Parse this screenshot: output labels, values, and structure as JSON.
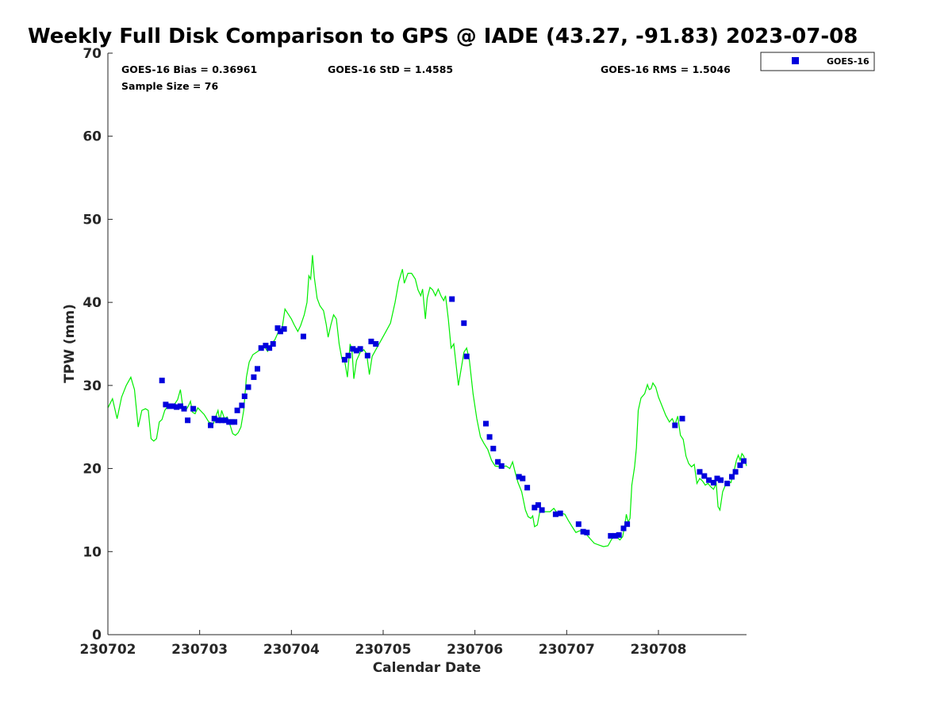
{
  "chart_data": {
    "type": "scatter",
    "title": "Weekly Full Disk Comparison to GPS @ IADE (43.27, -91.83) 2023-07-08",
    "xlabel": "Calendar Date",
    "ylabel": "TPW (mm)",
    "xlim": [
      0,
      6.96
    ],
    "ylim": [
      0,
      70
    ],
    "x_ticks": [
      0,
      1,
      2,
      3,
      4,
      5,
      6
    ],
    "x_tick_labels": [
      "230702",
      "230703",
      "230704",
      "230705",
      "230706",
      "230707",
      "230708"
    ],
    "y_ticks": [
      0,
      10,
      20,
      30,
      40,
      50,
      60,
      70
    ],
    "y_tick_labels": [
      "0",
      "10",
      "20",
      "30",
      "40",
      "50",
      "60",
      "70"
    ],
    "legend_position": "top-right outside",
    "stats": {
      "bias": "GOES-16 Bias = 0.36961",
      "std": "GOES-16 StD = 1.4585",
      "rms": "GOES-16 RMS = 1.5046",
      "sample": "Sample Size = 76"
    },
    "series": [
      {
        "name": "GPS",
        "kind": "line",
        "color": "#00ee00",
        "points": [
          [
            0.0,
            27.3
          ],
          [
            0.05,
            28.4
          ],
          [
            0.1,
            26.0
          ],
          [
            0.15,
            28.6
          ],
          [
            0.2,
            30.0
          ],
          [
            0.25,
            31.0
          ],
          [
            0.29,
            29.5
          ],
          [
            0.33,
            25.0
          ],
          [
            0.37,
            27.0
          ],
          [
            0.41,
            27.2
          ],
          [
            0.44,
            27.0
          ],
          [
            0.47,
            23.6
          ],
          [
            0.5,
            23.3
          ],
          [
            0.53,
            23.6
          ],
          [
            0.56,
            25.6
          ],
          [
            0.59,
            25.9
          ],
          [
            0.62,
            27.0
          ],
          [
            0.66,
            27.6
          ],
          [
            0.7,
            27.3
          ],
          [
            0.73,
            27.8
          ],
          [
            0.76,
            28.3
          ],
          [
            0.79,
            29.5
          ],
          [
            0.82,
            27.2
          ],
          [
            0.85,
            27.0
          ],
          [
            0.88,
            27.6
          ],
          [
            0.9,
            28.1
          ],
          [
            0.92,
            26.8
          ],
          [
            0.95,
            26.6
          ],
          [
            0.98,
            27.3
          ],
          [
            1.05,
            26.5
          ],
          [
            1.1,
            25.6
          ],
          [
            1.15,
            25.4
          ],
          [
            1.18,
            26.4
          ],
          [
            1.2,
            27.0
          ],
          [
            1.22,
            25.7
          ],
          [
            1.24,
            27.0
          ],
          [
            1.27,
            26.0
          ],
          [
            1.3,
            26.2
          ],
          [
            1.33,
            25.3
          ],
          [
            1.36,
            24.2
          ],
          [
            1.39,
            24.0
          ],
          [
            1.42,
            24.3
          ],
          [
            1.45,
            25.0
          ],
          [
            1.48,
            27.0
          ],
          [
            1.51,
            31.0
          ],
          [
            1.54,
            32.8
          ],
          [
            1.58,
            33.7
          ],
          [
            1.62,
            34.0
          ],
          [
            1.66,
            34.3
          ],
          [
            1.7,
            34.8
          ],
          [
            1.74,
            34.1
          ],
          [
            1.78,
            35.0
          ],
          [
            1.82,
            35.5
          ],
          [
            1.86,
            36.5
          ],
          [
            1.9,
            37.0
          ],
          [
            1.93,
            39.2
          ],
          [
            1.97,
            38.5
          ],
          [
            2.0,
            38.0
          ],
          [
            2.03,
            37.3
          ],
          [
            2.07,
            36.5
          ],
          [
            2.1,
            37.2
          ],
          [
            2.14,
            38.5
          ],
          [
            2.17,
            40.0
          ],
          [
            2.19,
            43.2
          ],
          [
            2.21,
            42.8
          ],
          [
            2.23,
            45.7
          ],
          [
            2.25,
            43.0
          ],
          [
            2.28,
            40.5
          ],
          [
            2.31,
            39.6
          ],
          [
            2.35,
            39.0
          ],
          [
            2.38,
            37.3
          ],
          [
            2.4,
            35.8
          ],
          [
            2.43,
            37.3
          ],
          [
            2.46,
            38.5
          ],
          [
            2.49,
            38.0
          ],
          [
            2.52,
            35.0
          ],
          [
            2.55,
            33.2
          ],
          [
            2.58,
            33.0
          ],
          [
            2.61,
            31.0
          ],
          [
            2.64,
            35.0
          ],
          [
            2.66,
            34.3
          ],
          [
            2.68,
            30.8
          ],
          [
            2.71,
            33.0
          ],
          [
            2.75,
            34.0
          ],
          [
            2.79,
            34.3
          ],
          [
            2.82,
            33.8
          ],
          [
            2.85,
            31.3
          ],
          [
            2.88,
            33.5
          ],
          [
            2.93,
            34.5
          ],
          [
            2.98,
            35.5
          ],
          [
            3.03,
            36.5
          ],
          [
            3.08,
            37.5
          ],
          [
            3.13,
            40.0
          ],
          [
            3.17,
            42.5
          ],
          [
            3.21,
            44.0
          ],
          [
            3.23,
            42.3
          ],
          [
            3.27,
            43.5
          ],
          [
            3.31,
            43.5
          ],
          [
            3.35,
            42.8
          ],
          [
            3.38,
            41.5
          ],
          [
            3.41,
            40.8
          ],
          [
            3.43,
            41.6
          ],
          [
            3.46,
            38.0
          ],
          [
            3.48,
            40.5
          ],
          [
            3.51,
            41.8
          ],
          [
            3.54,
            41.5
          ],
          [
            3.57,
            40.8
          ],
          [
            3.6,
            41.6
          ],
          [
            3.63,
            40.8
          ],
          [
            3.66,
            40.2
          ],
          [
            3.68,
            40.8
          ],
          [
            3.71,
            38.0
          ],
          [
            3.74,
            34.5
          ],
          [
            3.77,
            35.0
          ],
          [
            3.8,
            32.0
          ],
          [
            3.82,
            30.0
          ],
          [
            3.85,
            32.0
          ],
          [
            3.88,
            34.0
          ],
          [
            3.91,
            34.5
          ],
          [
            3.94,
            33.0
          ],
          [
            3.98,
            29.0
          ],
          [
            4.02,
            26.0
          ],
          [
            4.06,
            23.8
          ],
          [
            4.1,
            23.0
          ],
          [
            4.14,
            22.3
          ],
          [
            4.18,
            21.0
          ],
          [
            4.22,
            20.3
          ],
          [
            4.28,
            20.2
          ],
          [
            4.34,
            20.3
          ],
          [
            4.38,
            20.0
          ],
          [
            4.41,
            20.8
          ],
          [
            4.44,
            19.5
          ],
          [
            4.47,
            18.3
          ],
          [
            4.51,
            17.2
          ],
          [
            4.55,
            15.0
          ],
          [
            4.58,
            14.2
          ],
          [
            4.61,
            14.0
          ],
          [
            4.63,
            14.3
          ],
          [
            4.65,
            13.0
          ],
          [
            4.68,
            13.2
          ],
          [
            4.71,
            15.0
          ],
          [
            4.76,
            14.8
          ],
          [
            4.82,
            14.8
          ],
          [
            4.86,
            15.2
          ],
          [
            4.9,
            14.6
          ],
          [
            4.94,
            14.6
          ],
          [
            4.98,
            14.5
          ],
          [
            5.02,
            13.7
          ],
          [
            5.06,
            13.0
          ],
          [
            5.1,
            12.3
          ],
          [
            5.14,
            12.5
          ],
          [
            5.18,
            12.5
          ],
          [
            5.22,
            12.0
          ],
          [
            5.26,
            11.5
          ],
          [
            5.3,
            11.0
          ],
          [
            5.35,
            10.8
          ],
          [
            5.4,
            10.6
          ],
          [
            5.45,
            10.7
          ],
          [
            5.49,
            11.5
          ],
          [
            5.53,
            12.0
          ],
          [
            5.56,
            11.6
          ],
          [
            5.58,
            11.4
          ],
          [
            5.61,
            11.8
          ],
          [
            5.63,
            13.0
          ],
          [
            5.65,
            14.5
          ],
          [
            5.67,
            13.5
          ],
          [
            5.69,
            14.0
          ],
          [
            5.71,
            18.0
          ],
          [
            5.74,
            20.2
          ],
          [
            5.76,
            22.5
          ],
          [
            5.78,
            27.0
          ],
          [
            5.81,
            28.5
          ],
          [
            5.85,
            29.0
          ],
          [
            5.88,
            30.1
          ],
          [
            5.9,
            29.5
          ],
          [
            5.92,
            29.6
          ],
          [
            5.94,
            30.3
          ],
          [
            5.97,
            29.8
          ],
          [
            6.0,
            28.6
          ],
          [
            6.04,
            27.5
          ],
          [
            6.08,
            26.4
          ],
          [
            6.12,
            25.6
          ],
          [
            6.15,
            26.0
          ],
          [
            6.18,
            25.3
          ],
          [
            6.21,
            26.3
          ],
          [
            6.24,
            24.0
          ],
          [
            6.27,
            23.5
          ],
          [
            6.3,
            21.5
          ],
          [
            6.33,
            20.6
          ],
          [
            6.36,
            20.2
          ],
          [
            6.39,
            20.5
          ],
          [
            6.42,
            18.2
          ],
          [
            6.45,
            18.8
          ],
          [
            6.48,
            18.5
          ],
          [
            6.51,
            18.0
          ],
          [
            6.54,
            18.2
          ],
          [
            6.57,
            17.8
          ],
          [
            6.6,
            17.5
          ],
          [
            6.63,
            18.2
          ],
          [
            6.65,
            15.4
          ],
          [
            6.67,
            15.0
          ],
          [
            6.7,
            17.2
          ],
          [
            6.73,
            18.0
          ],
          [
            6.76,
            18.4
          ],
          [
            6.79,
            18.3
          ],
          [
            6.82,
            19.5
          ],
          [
            6.85,
            21.0
          ],
          [
            6.87,
            21.6
          ],
          [
            6.89,
            21.0
          ],
          [
            6.91,
            21.8
          ],
          [
            6.93,
            21.5
          ],
          [
            6.96,
            20.3
          ]
        ]
      },
      {
        "name": "GOES-16",
        "kind": "markers",
        "color": "#0000dd",
        "points": [
          [
            0.59,
            30.6
          ],
          [
            0.63,
            27.7
          ],
          [
            0.67,
            27.5
          ],
          [
            0.71,
            27.5
          ],
          [
            0.75,
            27.4
          ],
          [
            0.79,
            27.5
          ],
          [
            0.83,
            27.2
          ],
          [
            0.87,
            25.8
          ],
          [
            0.93,
            27.2
          ],
          [
            1.12,
            25.2
          ],
          [
            1.16,
            26.0
          ],
          [
            1.2,
            25.8
          ],
          [
            1.24,
            25.8
          ],
          [
            1.28,
            25.8
          ],
          [
            1.32,
            25.6
          ],
          [
            1.35,
            25.6
          ],
          [
            1.38,
            25.6
          ],
          [
            1.41,
            27.0
          ],
          [
            1.46,
            27.6
          ],
          [
            1.49,
            28.7
          ],
          [
            1.53,
            29.8
          ],
          [
            1.59,
            31.0
          ],
          [
            1.63,
            32.0
          ],
          [
            1.67,
            34.5
          ],
          [
            1.72,
            34.8
          ],
          [
            1.76,
            34.5
          ],
          [
            1.8,
            35.0
          ],
          [
            1.85,
            36.9
          ],
          [
            1.88,
            36.5
          ],
          [
            1.92,
            36.8
          ],
          [
            2.13,
            35.9
          ],
          [
            2.58,
            33.1
          ],
          [
            2.62,
            33.6
          ],
          [
            2.67,
            34.4
          ],
          [
            2.71,
            34.2
          ],
          [
            2.75,
            34.4
          ],
          [
            2.83,
            33.6
          ],
          [
            2.87,
            35.3
          ],
          [
            2.92,
            35.0
          ],
          [
            3.75,
            40.4
          ],
          [
            3.88,
            37.5
          ],
          [
            3.91,
            33.5
          ],
          [
            4.12,
            25.4
          ],
          [
            4.16,
            23.8
          ],
          [
            4.2,
            22.4
          ],
          [
            4.25,
            20.8
          ],
          [
            4.29,
            20.3
          ],
          [
            4.48,
            19.0
          ],
          [
            4.52,
            18.8
          ],
          [
            4.57,
            17.7
          ],
          [
            4.65,
            15.3
          ],
          [
            4.69,
            15.6
          ],
          [
            4.73,
            15.0
          ],
          [
            4.88,
            14.5
          ],
          [
            4.93,
            14.6
          ],
          [
            5.13,
            13.3
          ],
          [
            5.18,
            12.4
          ],
          [
            5.22,
            12.3
          ],
          [
            5.48,
            11.9
          ],
          [
            5.53,
            11.9
          ],
          [
            5.57,
            12.0
          ],
          [
            5.62,
            12.8
          ],
          [
            5.66,
            13.3
          ],
          [
            6.18,
            25.2
          ],
          [
            6.26,
            26.0
          ],
          [
            6.45,
            19.6
          ],
          [
            6.5,
            19.1
          ],
          [
            6.55,
            18.6
          ],
          [
            6.6,
            18.3
          ],
          [
            6.64,
            18.8
          ],
          [
            6.68,
            18.6
          ],
          [
            6.75,
            18.2
          ],
          [
            6.8,
            19.0
          ],
          [
            6.84,
            19.6
          ],
          [
            6.89,
            20.4
          ],
          [
            6.93,
            20.9
          ]
        ]
      }
    ]
  }
}
